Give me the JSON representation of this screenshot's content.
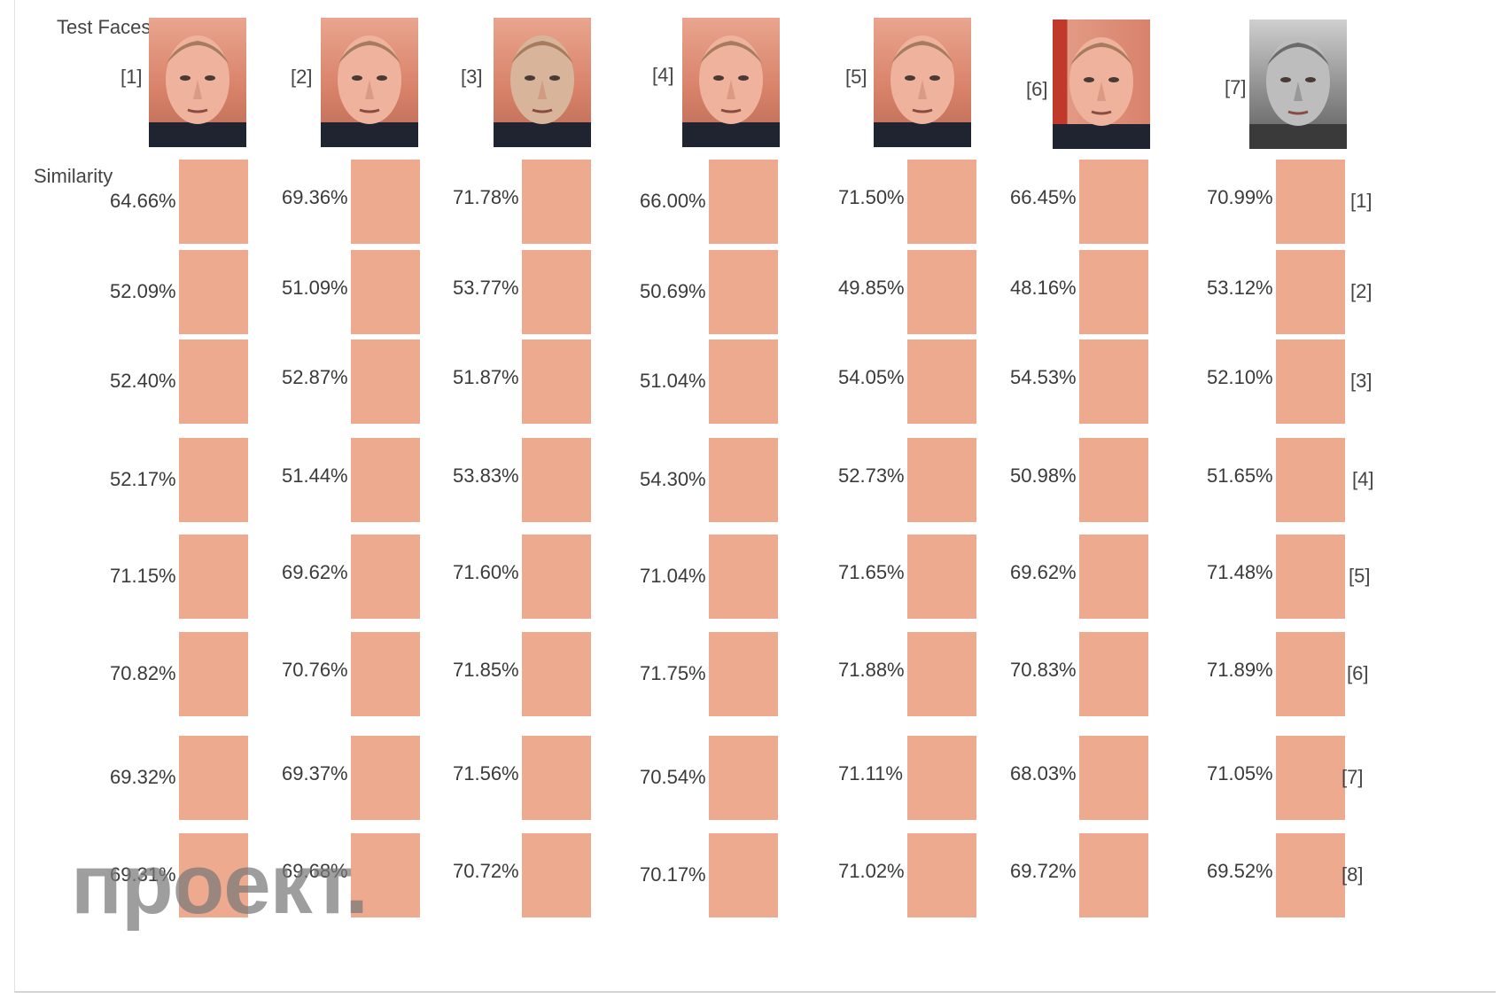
{
  "header": {
    "test_faces_label": "Test Faces",
    "similarity_label": "Similarity"
  },
  "test_faces": [
    {
      "label": "[1]"
    },
    {
      "label": "[2]"
    },
    {
      "label": "[3]"
    },
    {
      "label": "[4]"
    },
    {
      "label": "[5]"
    },
    {
      "label": "[6]"
    },
    {
      "label": "[7]"
    }
  ],
  "row_labels": [
    "[1]",
    "[2]",
    "[3]",
    "[4]",
    "[5]",
    "[6]",
    "[7]",
    "[8]"
  ],
  "similarity": [
    [
      "64.66%",
      "69.36%",
      "71.78%",
      "66.00%",
      "71.50%",
      "66.45%",
      "70.99%"
    ],
    [
      "52.09%",
      "51.09%",
      "53.77%",
      "50.69%",
      "49.85%",
      "48.16%",
      "53.12%"
    ],
    [
      "52.40%",
      "52.87%",
      "51.87%",
      "51.04%",
      "54.05%",
      "54.53%",
      "52.10%"
    ],
    [
      "52.17%",
      "51.44%",
      "53.83%",
      "54.30%",
      "52.73%",
      "50.98%",
      "51.65%"
    ],
    [
      "71.15%",
      "69.62%",
      "71.60%",
      "71.04%",
      "71.65%",
      "69.62%",
      "71.48%"
    ],
    [
      "70.82%",
      "70.76%",
      "71.85%",
      "71.75%",
      "71.88%",
      "70.83%",
      "71.89%"
    ],
    [
      "69.32%",
      "69.37%",
      "71.56%",
      "70.54%",
      "71.11%",
      "68.03%",
      "71.05%"
    ],
    [
      "69.31%",
      "69.68%",
      "70.72%",
      "70.17%",
      "71.02%",
      "69.72%",
      "69.52%"
    ]
  ],
  "colors": {
    "swatch": "#EDAA8E",
    "background": "#FFFFFF"
  },
  "watermark": "проект."
}
